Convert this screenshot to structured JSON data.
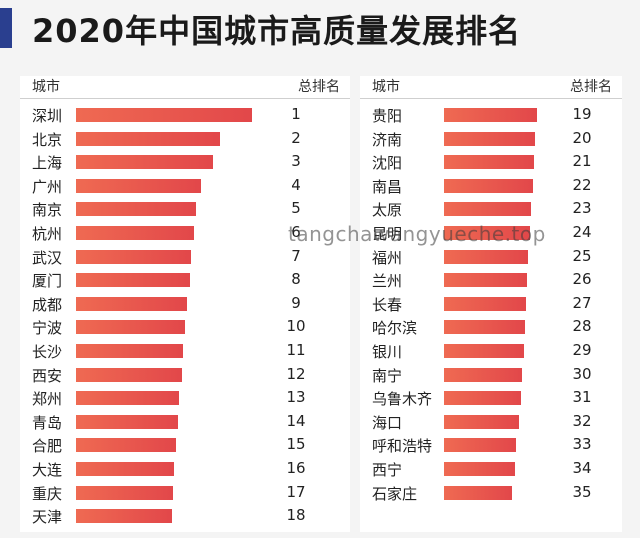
{
  "title": "2020年中国城市高质量发展排名",
  "watermark": "tangchawangyueche.top",
  "colors": {
    "bar": "#e85a4c",
    "accent": "#2a3f8f"
  },
  "left_table": {
    "col_city": "城市",
    "col_rank": "总排名"
  },
  "right_table": {
    "col_city": "城市",
    "col_rank": "总排名"
  },
  "chart_data": {
    "type": "bar",
    "orientation": "horizontal",
    "title": "2020年中国城市高质量发展排名",
    "value_shown": "bar length (no numeric scale printed)",
    "columns": [
      "城市",
      "总排名"
    ],
    "rows": [
      {
        "city": "深圳",
        "rank": 1,
        "score": 100
      },
      {
        "city": "北京",
        "rank": 2,
        "score": 82
      },
      {
        "city": "上海",
        "rank": 3,
        "score": 78
      },
      {
        "city": "广州",
        "rank": 4,
        "score": 71
      },
      {
        "city": "南京",
        "rank": 5,
        "score": 68
      },
      {
        "city": "杭州",
        "rank": 6,
        "score": 67
      },
      {
        "city": "武汉",
        "rank": 7,
        "score": 65.5
      },
      {
        "city": "厦门",
        "rank": 8,
        "score": 65
      },
      {
        "city": "成都",
        "rank": 9,
        "score": 63
      },
      {
        "city": "宁波",
        "rank": 10,
        "score": 62
      },
      {
        "city": "长沙",
        "rank": 11,
        "score": 61
      },
      {
        "city": "西安",
        "rank": 12,
        "score": 60.5
      },
      {
        "city": "郑州",
        "rank": 13,
        "score": 58.5
      },
      {
        "city": "青岛",
        "rank": 14,
        "score": 58
      },
      {
        "city": "合肥",
        "rank": 15,
        "score": 57
      },
      {
        "city": "大连",
        "rank": 16,
        "score": 55.5
      },
      {
        "city": "重庆",
        "rank": 17,
        "score": 55
      },
      {
        "city": "天津",
        "rank": 18,
        "score": 54.5
      },
      {
        "city": "贵阳",
        "rank": 19,
        "score": 54
      },
      {
        "city": "济南",
        "rank": 20,
        "score": 53
      },
      {
        "city": "沈阳",
        "rank": 21,
        "score": 52
      },
      {
        "city": "南昌",
        "rank": 22,
        "score": 51.5
      },
      {
        "city": "太原",
        "rank": 23,
        "score": 50.5
      },
      {
        "city": "昆明",
        "rank": 24,
        "score": 50
      },
      {
        "city": "福州",
        "rank": 25,
        "score": 48.5
      },
      {
        "city": "兰州",
        "rank": 26,
        "score": 48
      },
      {
        "city": "长春",
        "rank": 27,
        "score": 47.5
      },
      {
        "city": "哈尔滨",
        "rank": 28,
        "score": 47
      },
      {
        "city": "银川",
        "rank": 29,
        "score": 46.5
      },
      {
        "city": "南宁",
        "rank": 30,
        "score": 45
      },
      {
        "city": "乌鲁木齐",
        "rank": 31,
        "score": 44.5
      },
      {
        "city": "海口",
        "rank": 32,
        "score": 43.5
      },
      {
        "city": "呼和浩特",
        "rank": 33,
        "score": 42
      },
      {
        "city": "西宁",
        "rank": 34,
        "score": 41
      },
      {
        "city": "石家庄",
        "rank": 35,
        "score": 39.5
      }
    ]
  }
}
